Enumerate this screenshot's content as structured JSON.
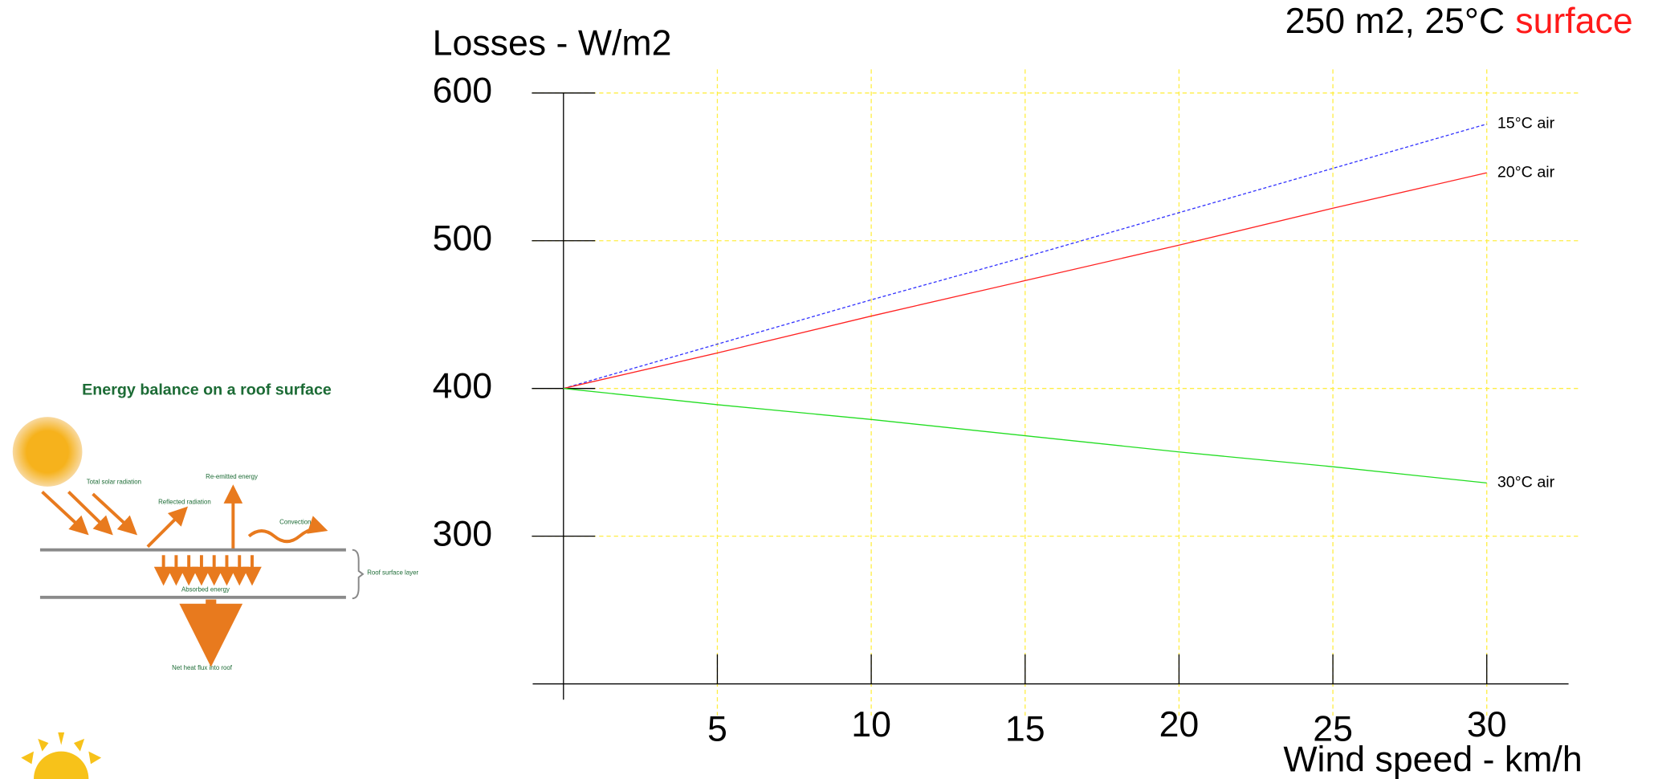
{
  "chart_data": {
    "type": "line",
    "title": "250 m2, 25°C",
    "title_highlight": "surface",
    "y_label": "Losses - W/m2",
    "x_label": "Wind speed - km/h",
    "x": [
      0,
      5,
      10,
      15,
      20,
      25,
      30
    ],
    "series": [
      {
        "name": "15°C air",
        "color": "#3333ff",
        "dashed": true,
        "values": [
          400,
          430,
          460,
          489,
          519,
          549,
          579
        ]
      },
      {
        "name": "20°C air",
        "color": "#ff2222",
        "dashed": false,
        "values": [
          400,
          424,
          449,
          473,
          497,
          522,
          546
        ]
      },
      {
        "name": "30°C air",
        "color": "#22dd22",
        "dashed": false,
        "values": [
          400,
          389,
          379,
          368,
          357,
          347,
          336
        ]
      }
    ],
    "xlim": [
      -1,
      33
    ],
    "ylim": [
      200,
      616
    ],
    "xticks": [
      5,
      10,
      15,
      20,
      25,
      30
    ],
    "yticks": [
      300,
      400,
      500,
      600
    ],
    "grid": true,
    "grid_color": "#ffee44"
  },
  "inset": {
    "title": "Energy balance on a roof surface",
    "labels": [
      "Total solar radiation",
      "Reflected radiation",
      "Re-emitted energy",
      "Convection",
      "Absorbed energy",
      "Roof surface layer",
      "Net heat flux into roof"
    ]
  }
}
